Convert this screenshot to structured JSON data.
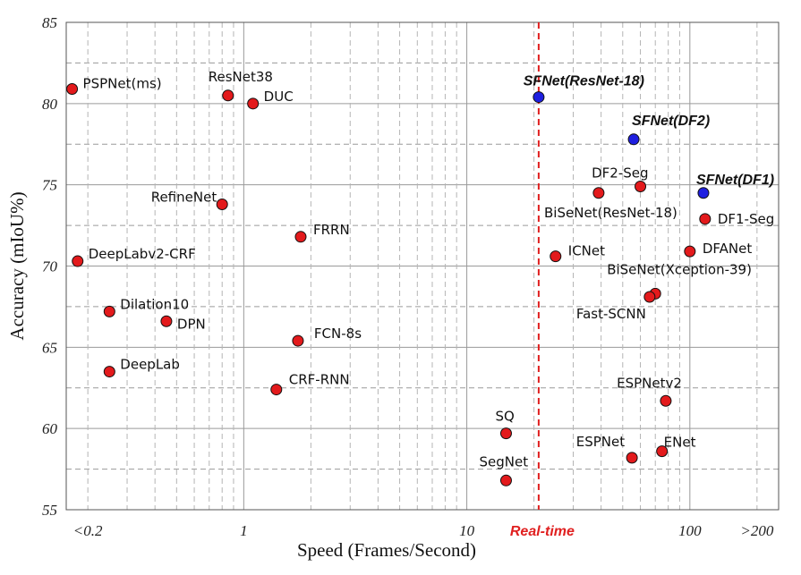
{
  "chart_data": {
    "type": "scatter",
    "title": "",
    "xlabel": "Speed (Frames/Second)",
    "ylabel": "Accuracy (mIoU%)",
    "xscale": "log",
    "xlim": [
      0.16,
      250
    ],
    "ylim": [
      55,
      85
    ],
    "x_tick_labels": [
      {
        "x": 0.2,
        "label": "<0.2"
      },
      {
        "x": 1,
        "label": "1"
      },
      {
        "x": 10,
        "label": "10"
      },
      {
        "x": 100,
        "label": "100"
      },
      {
        "x": 200,
        "label": ">200"
      }
    ],
    "y_ticks": [
      55,
      60,
      65,
      70,
      75,
      80,
      85
    ],
    "grid": true,
    "reference_line": {
      "x": 21,
      "label": "Real-time",
      "color": "#e02020"
    },
    "colors": {
      "baseline": "#e31a1c",
      "highlight": "#1f1fe0"
    },
    "points": [
      {
        "name": "PSPNet(ms)",
        "x": 0.17,
        "y": 80.9,
        "highlight": false
      },
      {
        "name": "ResNet38",
        "x": 0.85,
        "y": 80.5,
        "highlight": false
      },
      {
        "name": "DUC",
        "x": 1.1,
        "y": 80.0,
        "highlight": false
      },
      {
        "name": "RefineNet",
        "x": 0.8,
        "y": 73.8,
        "highlight": false
      },
      {
        "name": "FRRN",
        "x": 1.8,
        "y": 71.8,
        "highlight": false
      },
      {
        "name": "DeepLabv2-CRF",
        "x": 0.18,
        "y": 70.3,
        "highlight": false
      },
      {
        "name": "Dilation10",
        "x": 0.25,
        "y": 67.2,
        "highlight": false
      },
      {
        "name": "DPN",
        "x": 0.45,
        "y": 66.6,
        "highlight": false
      },
      {
        "name": "FCN-8s",
        "x": 1.75,
        "y": 65.4,
        "highlight": false
      },
      {
        "name": "DeepLab",
        "x": 0.25,
        "y": 63.5,
        "highlight": false
      },
      {
        "name": "CRF-RNN",
        "x": 1.4,
        "y": 62.4,
        "highlight": false
      },
      {
        "name": "SQ",
        "x": 15,
        "y": 59.7,
        "highlight": false
      },
      {
        "name": "SegNet",
        "x": 15,
        "y": 56.8,
        "highlight": false
      },
      {
        "name": "ICNet",
        "x": 25,
        "y": 70.6,
        "highlight": false
      },
      {
        "name": "BiSeNet(ResNet-18)",
        "x": 39,
        "y": 74.5,
        "highlight": false
      },
      {
        "name": "DF2-Seg",
        "x": 60,
        "y": 74.9,
        "highlight": false
      },
      {
        "name": "DF1-Seg",
        "x": 117,
        "y": 72.9,
        "highlight": false
      },
      {
        "name": "DFANet",
        "x": 100,
        "y": 70.9,
        "highlight": false
      },
      {
        "name": "BiSeNet(Xception-39)",
        "x": 70,
        "y": 68.3,
        "highlight": false
      },
      {
        "name": "Fast-SCNN",
        "x": 66,
        "y": 68.1,
        "highlight": false
      },
      {
        "name": "ESPNetv2",
        "x": 78,
        "y": 61.7,
        "highlight": false
      },
      {
        "name": "ESPNet",
        "x": 55,
        "y": 58.2,
        "highlight": false
      },
      {
        "name": "ENet",
        "x": 75,
        "y": 58.6,
        "highlight": false
      },
      {
        "name": "SFNet(ResNet-18)",
        "x": 21,
        "y": 80.4,
        "highlight": true
      },
      {
        "name": "SFNet(DF2)",
        "x": 56,
        "y": 77.8,
        "highlight": true
      },
      {
        "name": "SFNet(DF1)",
        "x": 115,
        "y": 74.5,
        "highlight": true
      }
    ]
  }
}
